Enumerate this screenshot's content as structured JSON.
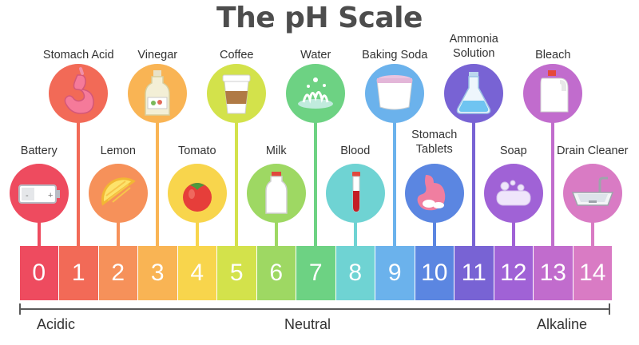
{
  "title": "The pH Scale",
  "scale": [
    {
      "value": "0",
      "color": "#ee4b5f"
    },
    {
      "value": "1",
      "color": "#f26a57"
    },
    {
      "value": "2",
      "color": "#f6915a"
    },
    {
      "value": "3",
      "color": "#f9b454"
    },
    {
      "value": "4",
      "color": "#f8d54c"
    },
    {
      "value": "5",
      "color": "#d3e24b"
    },
    {
      "value": "6",
      "color": "#9ed863"
    },
    {
      "value": "7",
      "color": "#6dd283"
    },
    {
      "value": "8",
      "color": "#6fd3d3"
    },
    {
      "value": "9",
      "color": "#6bb2ec"
    },
    {
      "value": "10",
      "color": "#5b86e1"
    },
    {
      "value": "11",
      "color": "#7863d4"
    },
    {
      "value": "12",
      "color": "#a062d6"
    },
    {
      "value": "13",
      "color": "#c16ccd"
    },
    {
      "value": "14",
      "color": "#d97bc4"
    }
  ],
  "items": [
    {
      "label": "Battery",
      "ph": 0,
      "row": "low",
      "icon": "battery-icon"
    },
    {
      "label": "Stomach Acid",
      "ph": 1,
      "row": "high",
      "icon": "stomach-icon"
    },
    {
      "label": "Lemon",
      "ph": 2,
      "row": "low",
      "icon": "lemon-icon"
    },
    {
      "label": "Vinegar",
      "ph": 3,
      "row": "high",
      "icon": "vinegar-bottle-icon"
    },
    {
      "label": "Tomato",
      "ph": 4,
      "row": "low",
      "icon": "tomato-icon"
    },
    {
      "label": "Coffee",
      "ph": 5,
      "row": "high",
      "icon": "coffee-cup-icon"
    },
    {
      "label": "Milk",
      "ph": 6,
      "row": "low",
      "icon": "milk-bottle-icon"
    },
    {
      "label": "Water",
      "ph": 7,
      "row": "high",
      "icon": "water-splash-icon"
    },
    {
      "label": "Blood",
      "ph": 8,
      "row": "low",
      "icon": "blood-test-tube-icon"
    },
    {
      "label": "Baking Soda",
      "ph": 9,
      "row": "high",
      "icon": "baking-soda-tub-icon"
    },
    {
      "label": "Stomach\nTablets",
      "ph": 10,
      "row": "low",
      "icon": "stomach-tablet-icon"
    },
    {
      "label": "Ammonia\nSolution",
      "ph": 11,
      "row": "high",
      "icon": "flask-icon"
    },
    {
      "label": "Soap",
      "ph": 12,
      "row": "low",
      "icon": "soap-icon"
    },
    {
      "label": "Bleach",
      "ph": 13,
      "row": "high",
      "icon": "bleach-jug-icon"
    },
    {
      "label": "Drain Cleaner",
      "ph": 14,
      "row": "low",
      "icon": "sink-icon"
    }
  ],
  "axis": {
    "left": "Acidic",
    "middle": "Neutral",
    "right": "Alkaline"
  }
}
